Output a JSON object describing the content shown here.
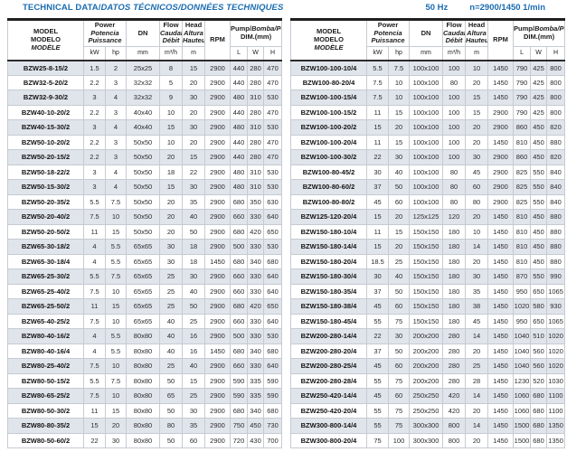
{
  "header": {
    "title_en": "TECHNICAL DATA/",
    "title_intl": "DATOS TÉCNICOS/DONNÉES TECHNIQUES",
    "frequency": "50 Hz",
    "speed": "n=2900/1450 1/min"
  },
  "colors": {
    "accent_blue": "#1a6cb0",
    "row_stripe": "#e0e4eb",
    "border_dark": "#1f1f1f",
    "border_light": "#c6cbd3"
  },
  "columns": {
    "model": {
      "en": "MODEL",
      "es": "MODELO",
      "fr": "MODÈLE"
    },
    "power": {
      "en": "Power",
      "es": "Potencia",
      "fr": "Puissance",
      "unit_kw": "kW",
      "unit_hp": "hp"
    },
    "dn": {
      "label": "DN",
      "unit": "mm"
    },
    "flow": {
      "en": "Flow",
      "es": "Caudal",
      "fr": "Débit",
      "unit": "m³/h"
    },
    "head": {
      "en": "Head",
      "es": "Altura",
      "fr": "Hauteur",
      "unit": "m"
    },
    "rpm": {
      "label": "RPM"
    },
    "dim": {
      "en": "Pump/",
      "intl": "Bomba/Pompe",
      "sub": "DIM.(mm)",
      "unit_l": "L",
      "unit_w": "W",
      "unit_h": "H"
    }
  },
  "left_table": {
    "rows": [
      [
        "BZW25-8-15/2",
        "1.5",
        "2",
        "25x25",
        "8",
        "15",
        "2900",
        "440",
        "280",
        "470"
      ],
      [
        "BZW32-5-20/2",
        "2.2",
        "3",
        "32x32",
        "5",
        "20",
        "2900",
        "440",
        "280",
        "470"
      ],
      [
        "BZW32-9-30/2",
        "3",
        "4",
        "32x32",
        "9",
        "30",
        "2900",
        "480",
        "310",
        "530"
      ],
      [
        "BZW40-10-20/2",
        "2.2",
        "3",
        "40x40",
        "10",
        "20",
        "2900",
        "440",
        "280",
        "470"
      ],
      [
        "BZW40-15-30/2",
        "3",
        "4",
        "40x40",
        "15",
        "30",
        "2900",
        "480",
        "310",
        "530"
      ],
      [
        "BZW50-10-20/2",
        "2.2",
        "3",
        "50x50",
        "10",
        "20",
        "2900",
        "440",
        "280",
        "470"
      ],
      [
        "BZW50-20-15/2",
        "2.2",
        "3",
        "50x50",
        "20",
        "15",
        "2900",
        "440",
        "280",
        "470"
      ],
      [
        "BZW50-18-22/2",
        "3",
        "4",
        "50x50",
        "18",
        "22",
        "2900",
        "480",
        "310",
        "530"
      ],
      [
        "BZW50-15-30/2",
        "3",
        "4",
        "50x50",
        "15",
        "30",
        "2900",
        "480",
        "310",
        "530"
      ],
      [
        "BZW50-20-35/2",
        "5.5",
        "7.5",
        "50x50",
        "20",
        "35",
        "2900",
        "680",
        "350",
        "630"
      ],
      [
        "BZW50-20-40/2",
        "7.5",
        "10",
        "50x50",
        "20",
        "40",
        "2900",
        "660",
        "330",
        "640"
      ],
      [
        "BZW50-20-50/2",
        "11",
        "15",
        "50x50",
        "20",
        "50",
        "2900",
        "680",
        "420",
        "650"
      ],
      [
        "BZW65-30-18/2",
        "4",
        "5.5",
        "65x65",
        "30",
        "18",
        "2900",
        "500",
        "330",
        "530"
      ],
      [
        "BZW65-30-18/4",
        "4",
        "5.5",
        "65x65",
        "30",
        "18",
        "1450",
        "680",
        "340",
        "680"
      ],
      [
        "BZW65-25-30/2",
        "5.5",
        "7.5",
        "65x65",
        "25",
        "30",
        "2900",
        "660",
        "330",
        "640"
      ],
      [
        "BZW65-25-40/2",
        "7.5",
        "10",
        "65x65",
        "25",
        "40",
        "2900",
        "660",
        "330",
        "640"
      ],
      [
        "BZW65-25-50/2",
        "11",
        "15",
        "65x65",
        "25",
        "50",
        "2900",
        "680",
        "420",
        "650"
      ],
      [
        "BZW65-40-25/2",
        "7.5",
        "10",
        "65x65",
        "40",
        "25",
        "2900",
        "660",
        "330",
        "640"
      ],
      [
        "BZW80-40-16/2",
        "4",
        "5.5",
        "80x80",
        "40",
        "16",
        "2900",
        "500",
        "330",
        "530"
      ],
      [
        "BZW80-40-16/4",
        "4",
        "5.5",
        "80x80",
        "40",
        "16",
        "1450",
        "680",
        "340",
        "680"
      ],
      [
        "BZW80-25-40/2",
        "7.5",
        "10",
        "80x80",
        "25",
        "40",
        "2900",
        "660",
        "330",
        "640"
      ],
      [
        "BZW80-50-15/2",
        "5.5",
        "7.5",
        "80x80",
        "50",
        "15",
        "2900",
        "590",
        "335",
        "590"
      ],
      [
        "BZW80-65-25/2",
        "7.5",
        "10",
        "80x80",
        "65",
        "25",
        "2900",
        "590",
        "335",
        "590"
      ],
      [
        "BZW80-50-30/2",
        "11",
        "15",
        "80x80",
        "50",
        "30",
        "2900",
        "680",
        "340",
        "680"
      ],
      [
        "BZW80-80-35/2",
        "15",
        "20",
        "80x80",
        "80",
        "35",
        "2900",
        "750",
        "450",
        "730"
      ],
      [
        "BZW80-50-60/2",
        "22",
        "30",
        "80x80",
        "50",
        "60",
        "2900",
        "720",
        "430",
        "700"
      ]
    ]
  },
  "right_table": {
    "rows": [
      [
        "BZW100-100-10/4",
        "5.5",
        "7.5",
        "100x100",
        "100",
        "10",
        "1450",
        "790",
        "425",
        "800"
      ],
      [
        "BZW100-80-20/4",
        "7.5",
        "10",
        "100x100",
        "80",
        "20",
        "1450",
        "790",
        "425",
        "800"
      ],
      [
        "BZW100-100-15/4",
        "7.5",
        "10",
        "100x100",
        "100",
        "15",
        "1450",
        "790",
        "425",
        "800"
      ],
      [
        "BZW100-100-15/2",
        "11",
        "15",
        "100x100",
        "100",
        "15",
        "2900",
        "790",
        "425",
        "800"
      ],
      [
        "BZW100-100-20/2",
        "15",
        "20",
        "100x100",
        "100",
        "20",
        "2900",
        "860",
        "450",
        "820"
      ],
      [
        "BZW100-100-20/4",
        "11",
        "15",
        "100x100",
        "100",
        "20",
        "1450",
        "810",
        "450",
        "880"
      ],
      [
        "BZW100-100-30/2",
        "22",
        "30",
        "100x100",
        "100",
        "30",
        "2900",
        "860",
        "450",
        "820"
      ],
      [
        "BZW100-80-45/2",
        "30",
        "40",
        "100x100",
        "80",
        "45",
        "2900",
        "825",
        "550",
        "840"
      ],
      [
        "BZW100-80-60/2",
        "37",
        "50",
        "100x100",
        "80",
        "60",
        "2900",
        "825",
        "550",
        "840"
      ],
      [
        "BZW100-80-80/2",
        "45",
        "60",
        "100x100",
        "80",
        "80",
        "2900",
        "825",
        "550",
        "840"
      ],
      [
        "BZW125-120-20/4",
        "15",
        "20",
        "125x125",
        "120",
        "20",
        "1450",
        "810",
        "450",
        "880"
      ],
      [
        "BZW150-180-10/4",
        "11",
        "15",
        "150x150",
        "180",
        "10",
        "1450",
        "810",
        "450",
        "880"
      ],
      [
        "BZW150-180-14/4",
        "15",
        "20",
        "150x150",
        "180",
        "14",
        "1450",
        "810",
        "450",
        "880"
      ],
      [
        "BZW150-180-20/4",
        "18.5",
        "25",
        "150x150",
        "180",
        "20",
        "1450",
        "810",
        "450",
        "880"
      ],
      [
        "BZW150-180-30/4",
        "30",
        "40",
        "150x150",
        "180",
        "30",
        "1450",
        "870",
        "550",
        "990"
      ],
      [
        "BZW150-180-35/4",
        "37",
        "50",
        "150x150",
        "180",
        "35",
        "1450",
        "950",
        "650",
        "1065"
      ],
      [
        "BZW150-180-38/4",
        "45",
        "60",
        "150x150",
        "180",
        "38",
        "1450",
        "1020",
        "580",
        "930"
      ],
      [
        "BZW150-180-45/4",
        "55",
        "75",
        "150x150",
        "180",
        "45",
        "1450",
        "950",
        "650",
        "1065"
      ],
      [
        "BZW200-280-14/4",
        "22",
        "30",
        "200x200",
        "280",
        "14",
        "1450",
        "1040",
        "510",
        "1020"
      ],
      [
        "BZW200-280-20/4",
        "37",
        "50",
        "200x200",
        "280",
        "20",
        "1450",
        "1040",
        "560",
        "1020"
      ],
      [
        "BZW200-280-25/4",
        "45",
        "60",
        "200x200",
        "280",
        "25",
        "1450",
        "1040",
        "560",
        "1020"
      ],
      [
        "BZW200-280-28/4",
        "55",
        "75",
        "200x200",
        "280",
        "28",
        "1450",
        "1230",
        "520",
        "1030"
      ],
      [
        "BZW250-420-14/4",
        "45",
        "60",
        "250x250",
        "420",
        "14",
        "1450",
        "1060",
        "680",
        "1100"
      ],
      [
        "BZW250-420-20/4",
        "55",
        "75",
        "250x250",
        "420",
        "20",
        "1450",
        "1060",
        "680",
        "1100"
      ],
      [
        "BZW300-800-14/4",
        "55",
        "75",
        "300x300",
        "800",
        "14",
        "1450",
        "1500",
        "680",
        "1350"
      ],
      [
        "BZW300-800-20/4",
        "75",
        "100",
        "300x300",
        "800",
        "20",
        "1450",
        "1500",
        "680",
        "1350"
      ]
    ]
  }
}
